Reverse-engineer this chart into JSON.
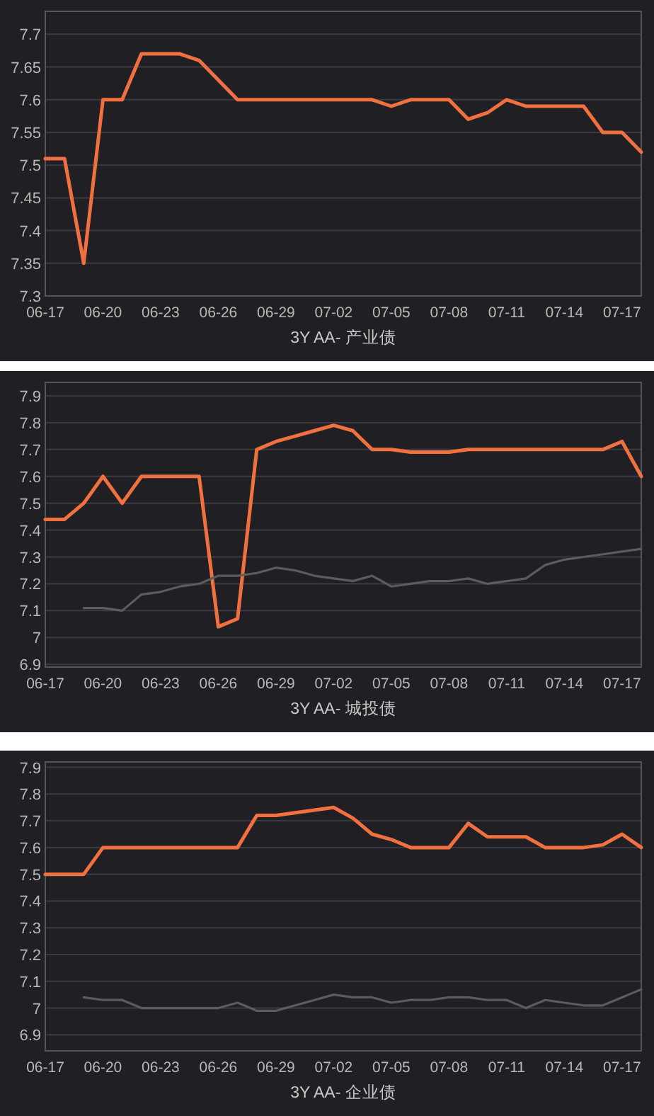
{
  "chart_data": [
    {
      "type": "line",
      "xlabel": "3Y AA- 产业债",
      "categories": [
        "06-17",
        null,
        null,
        "06-20",
        null,
        null,
        "06-23",
        null,
        null,
        "06-26",
        null,
        null,
        "06-29",
        null,
        null,
        "07-02",
        null,
        null,
        "07-05",
        null,
        null,
        "07-08",
        null,
        null,
        "07-11",
        null,
        null,
        "07-14",
        null,
        null,
        "07-17",
        null
      ],
      "series": [
        {
          "color": "#f07040",
          "values": [
            7.51,
            7.51,
            7.35,
            7.6,
            7.6,
            7.67,
            7.67,
            7.67,
            7.66,
            7.63,
            7.6,
            7.6,
            7.6,
            7.6,
            7.6,
            7.6,
            7.6,
            7.6,
            7.59,
            7.6,
            7.6,
            7.6,
            7.57,
            7.58,
            7.6,
            7.59,
            7.59,
            7.59,
            7.59,
            7.55,
            7.55,
            7.52
          ]
        }
      ],
      "ylim": [
        7.3,
        7.735
      ],
      "yticks": [
        7.3,
        7.35,
        7.4,
        7.45,
        7.5,
        7.55,
        7.6,
        7.65,
        7.7
      ],
      "grid": "y",
      "marker": "none",
      "line_style": "solid"
    },
    {
      "type": "line",
      "xlabel": "3Y AA- 城投债",
      "categories": [
        "06-17",
        null,
        null,
        "06-20",
        null,
        null,
        "06-23",
        null,
        null,
        "06-26",
        null,
        null,
        "06-29",
        null,
        null,
        "07-02",
        null,
        null,
        "07-05",
        null,
        null,
        "07-08",
        null,
        null,
        "07-11",
        null,
        null,
        "07-14",
        null,
        null,
        "07-17",
        null
      ],
      "series": [
        {
          "color": "#f07040",
          "values": [
            7.44,
            7.44,
            7.5,
            7.6,
            7.5,
            7.6,
            7.6,
            7.6,
            7.6,
            7.04,
            7.07,
            7.7,
            7.73,
            7.75,
            7.77,
            7.79,
            7.77,
            7.7,
            7.7,
            7.69,
            7.69,
            7.69,
            7.7,
            7.7,
            7.7,
            7.7,
            7.7,
            7.7,
            7.7,
            7.7,
            7.73,
            7.6
          ]
        },
        {
          "color": "#5c5c5c",
          "values": [
            null,
            null,
            7.11,
            7.11,
            7.1,
            7.16,
            7.17,
            7.19,
            7.2,
            7.23,
            7.23,
            7.24,
            7.26,
            7.25,
            7.23,
            7.22,
            7.21,
            7.23,
            7.19,
            7.2,
            7.21,
            7.21,
            7.22,
            7.2,
            7.21,
            7.22,
            7.27,
            7.29,
            7.3,
            7.31,
            7.32,
            7.33
          ]
        }
      ],
      "ylim": [
        6.89,
        7.95
      ],
      "yticks": [
        6.9,
        7,
        7.1,
        7.2,
        7.3,
        7.4,
        7.5,
        7.6,
        7.7,
        7.8,
        7.9
      ],
      "grid": "y",
      "marker": "none",
      "line_style": "solid"
    },
    {
      "type": "line",
      "xlabel": "3Y AA- 企业债",
      "categories": [
        "06-17",
        null,
        null,
        "06-20",
        null,
        null,
        "06-23",
        null,
        null,
        "06-26",
        null,
        null,
        "06-29",
        null,
        null,
        "07-02",
        null,
        null,
        "07-05",
        null,
        null,
        "07-08",
        null,
        null,
        "07-11",
        null,
        null,
        "07-14",
        null,
        null,
        "07-17",
        null
      ],
      "series": [
        {
          "color": "#f07040",
          "values": [
            7.5,
            7.5,
            7.5,
            7.6,
            7.6,
            7.6,
            7.6,
            7.6,
            7.6,
            7.6,
            7.6,
            7.72,
            7.72,
            7.73,
            7.74,
            7.75,
            7.71,
            7.65,
            7.63,
            7.6,
            7.6,
            7.6,
            7.69,
            7.64,
            7.64,
            7.64,
            7.6,
            7.6,
            7.6,
            7.61,
            7.65,
            7.6
          ]
        },
        {
          "color": "#5c5c5c",
          "values": [
            null,
            null,
            7.04,
            7.03,
            7.03,
            7.0,
            7.0,
            7.0,
            7.0,
            7.0,
            7.02,
            6.99,
            6.99,
            7.01,
            7.03,
            7.05,
            7.04,
            7.04,
            7.02,
            7.03,
            7.03,
            7.04,
            7.04,
            7.03,
            7.03,
            7.0,
            7.03,
            7.02,
            7.01,
            7.01,
            7.04,
            7.07
          ]
        }
      ],
      "ylim": [
        6.84,
        7.92
      ],
      "yticks": [
        6.9,
        7,
        7.1,
        7.2,
        7.3,
        7.4,
        7.5,
        7.6,
        7.7,
        7.8,
        7.9
      ],
      "grid": "y",
      "marker": "none",
      "line_style": "solid"
    }
  ]
}
